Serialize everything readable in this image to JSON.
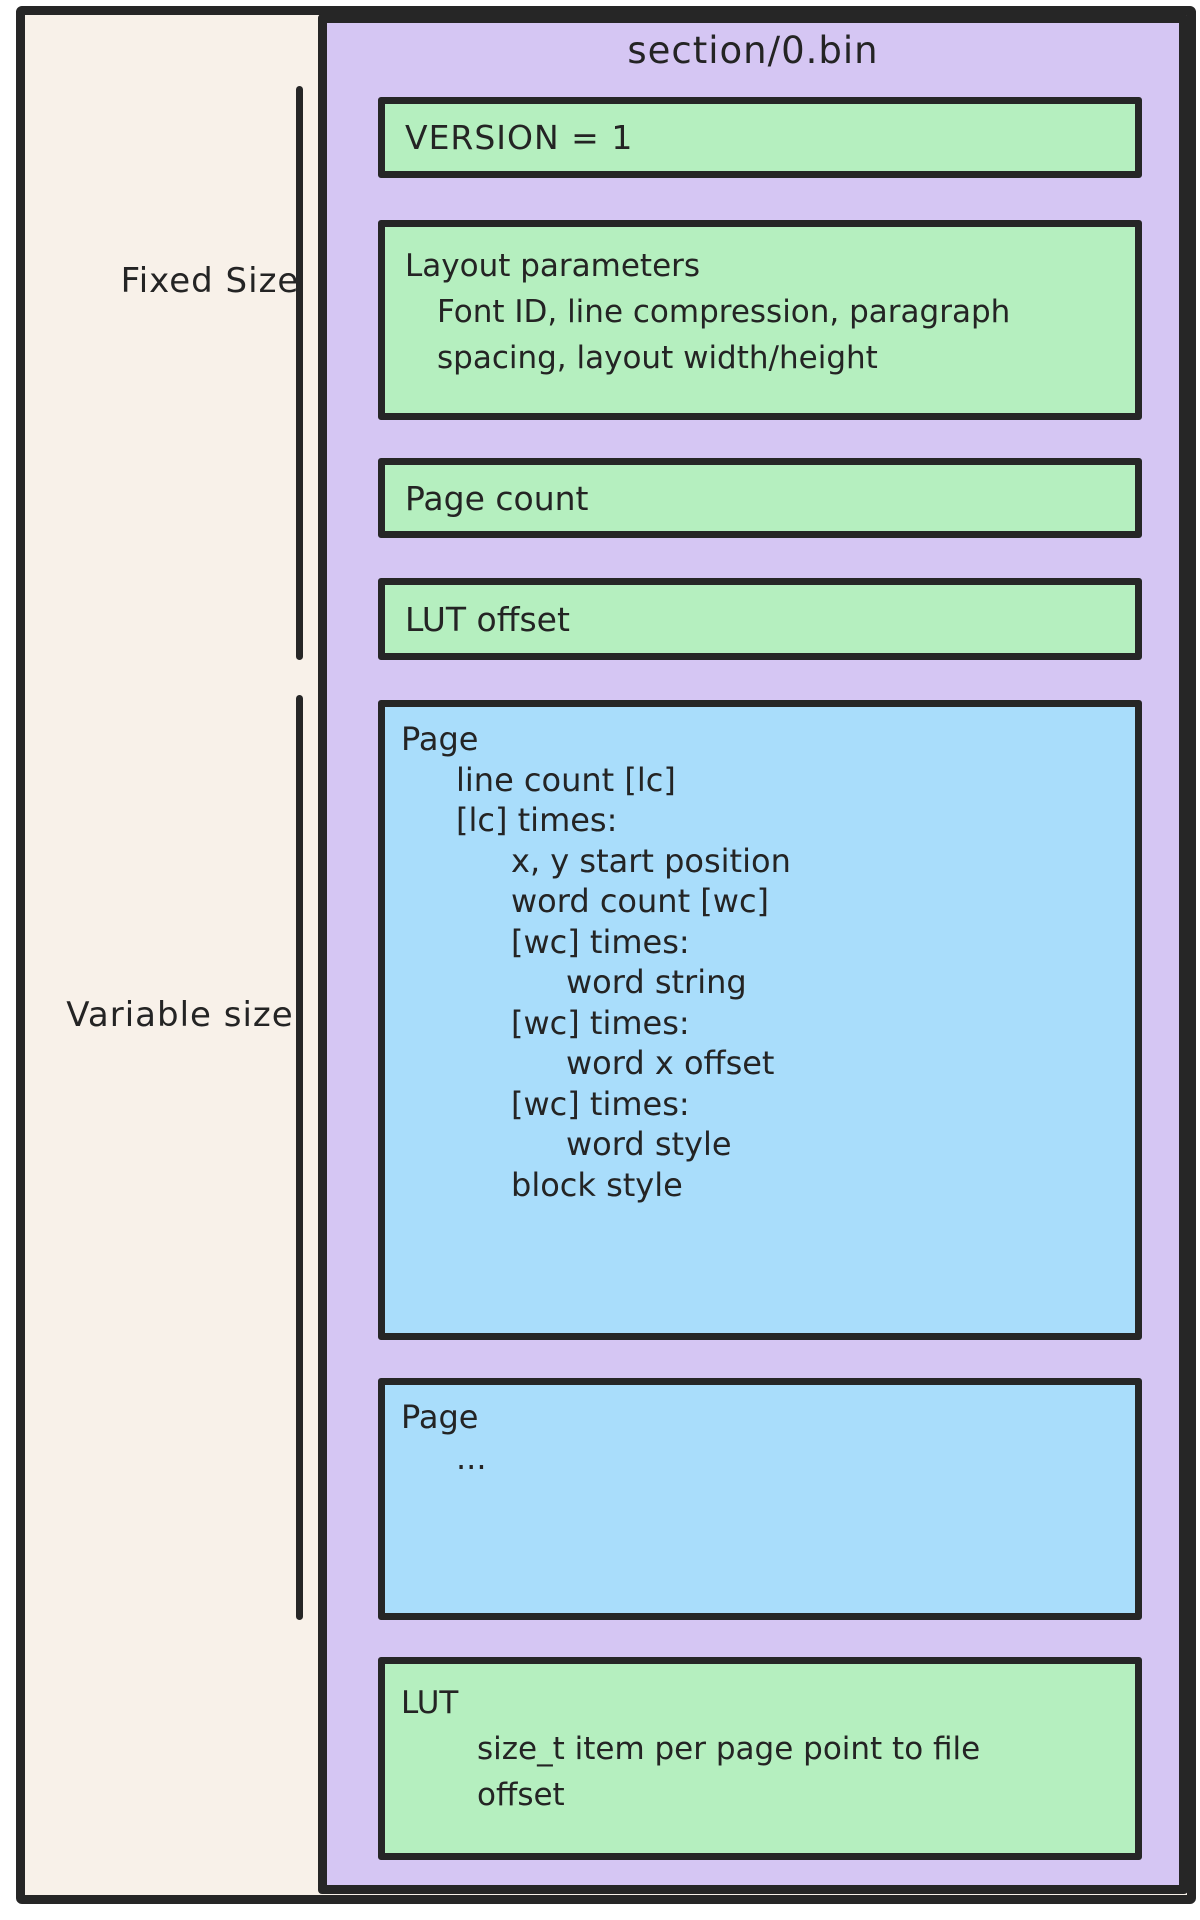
{
  "title": "section/0.bin",
  "side_labels": {
    "fixed": "Fixed Size",
    "variable": "Variable size"
  },
  "boxes": {
    "version": {
      "lines": [
        "VERSION = 1"
      ]
    },
    "layout_params": {
      "lines": [
        "Layout parameters",
        "Font ID, line compression, paragraph",
        "spacing, layout width/height"
      ]
    },
    "page_count": {
      "lines": [
        "Page count"
      ]
    },
    "lut_offset": {
      "lines": [
        "LUT offset"
      ]
    },
    "page_detail": {
      "lines": [
        "Page",
        "line count [lc]",
        "[lc] times:",
        "x, y start position",
        "word count [wc]",
        "[wc] times:",
        "word string",
        "[wc] times:",
        "word x offset",
        "[wc] times:",
        "word style",
        "block style"
      ]
    },
    "page_more": {
      "lines": [
        "Page",
        "..."
      ]
    },
    "lut": {
      "lines": [
        "LUT",
        "size_t item per page point to file",
        "offset"
      ]
    }
  },
  "colors": {
    "canvas": "#f8f1e9",
    "container": "#d5c6f3",
    "fixed_box": "#b5efbf",
    "variable_box": "#a9ddfb",
    "stroke": "#262626"
  }
}
